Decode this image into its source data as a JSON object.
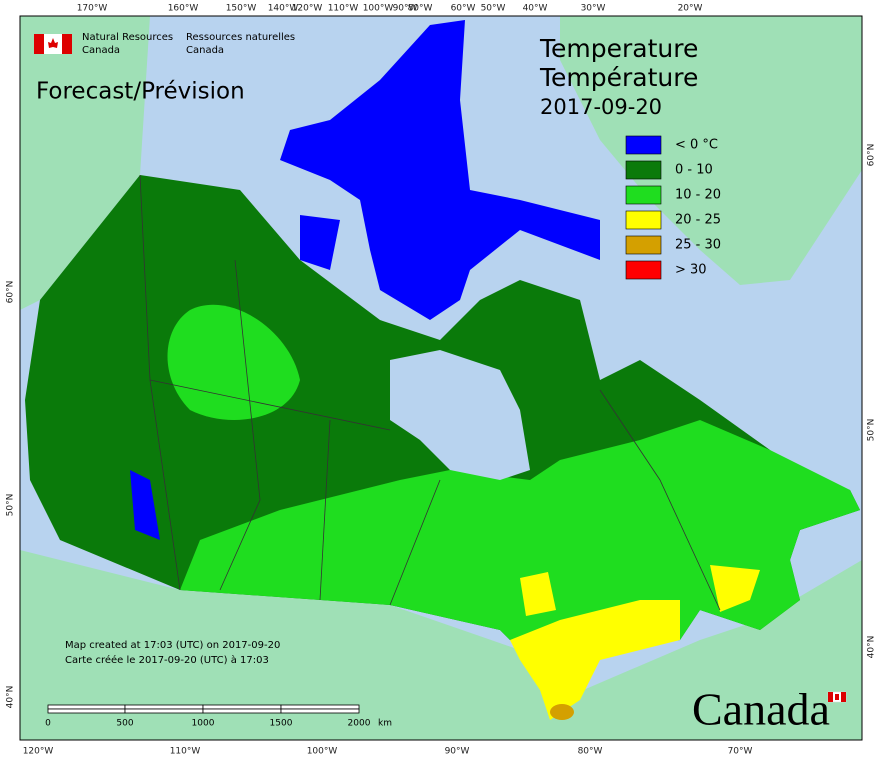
{
  "header": {
    "agency_en": [
      "Natural Resources",
      "Canada"
    ],
    "agency_fr": [
      "Ressources naturelles",
      "Canada"
    ],
    "product": "Forecast/Prévision"
  },
  "title": {
    "en": "Temperature",
    "fr": "Température",
    "date": "2017-09-20"
  },
  "legend": [
    {
      "label": "< 0 °C",
      "color": "#0000ff"
    },
    {
      "label": "0 - 10",
      "color": "#0a7a0a"
    },
    {
      "label": "10 - 20",
      "color": "#1fdd1f"
    },
    {
      "label": "20 - 25",
      "color": "#ffff00"
    },
    {
      "label": "25 - 30",
      "color": "#d4a000"
    },
    {
      "label": "> 30",
      "color": "#ff0000"
    }
  ],
  "graticule": {
    "top": [
      "170°W",
      "160°W",
      "150°W",
      "140°W",
      "120°W",
      "110°W",
      "100°W",
      "90°W",
      "80°W",
      "60°W",
      "50°W",
      "40°W",
      "30°W",
      "20°W"
    ],
    "bottom": [
      "120°W",
      "110°W",
      "100°W",
      "90°W",
      "80°W",
      "70°W"
    ],
    "left": [
      "60°N",
      "50°N",
      "40°N"
    ],
    "right": [
      "60°N",
      "50°N",
      "40°N"
    ]
  },
  "footer": {
    "created_en": "Map created at 17:03 (UTC) on 2017-09-20",
    "created_fr": "Carte créée le 2017-09-20 (UTC) à 17:03"
  },
  "scale_bar": {
    "labels": [
      "0",
      "500",
      "1000",
      "1500",
      "2000"
    ],
    "unit": "km"
  },
  "wordmark": "Canada"
}
